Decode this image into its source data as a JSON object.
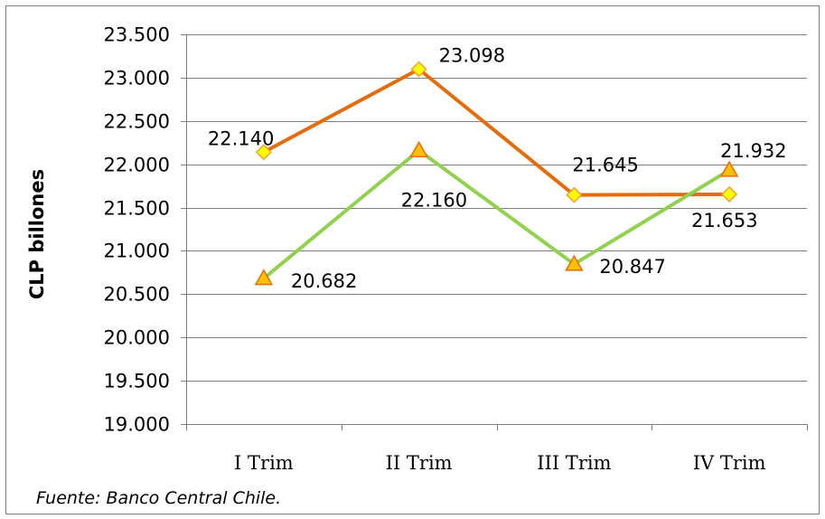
{
  "chart_data": {
    "type": "line",
    "categories": [
      "I Trim",
      "II Trim",
      "III  Trim",
      "IV Trim"
    ],
    "series": [
      {
        "name": "",
        "color": "#e46c0a",
        "marker": "diamond",
        "marker_fill": "#ffff00",
        "marker_stroke": "#f0a030",
        "values": [
          22140,
          23098,
          21645,
          21653
        ],
        "labels": [
          "22.140",
          "23.098",
          "21.645",
          "21.653"
        ]
      },
      {
        "name": "",
        "color": "#92d050",
        "marker": "triangle",
        "marker_fill": "#ffc000",
        "marker_stroke": "#e46c0a",
        "values": [
          20682,
          22160,
          20847,
          21932
        ],
        "labels": [
          "20.682",
          "22.160",
          "20.847",
          "21.932"
        ]
      }
    ],
    "ylabel": "CLP billones",
    "ylim": [
      19000,
      23500
    ],
    "yticks": [
      19000,
      19500,
      20000,
      20500,
      21000,
      21500,
      22000,
      22500,
      23000,
      23500
    ],
    "ytick_labels": [
      "19.000",
      "19.500",
      "20.000",
      "20.500",
      "21.000",
      "21.500",
      "22.000",
      "22.500",
      "23.000",
      "23.500"
    ],
    "grid": true,
    "gridline_color": "#808080"
  },
  "source": "Fuente: Banco Central Chile."
}
